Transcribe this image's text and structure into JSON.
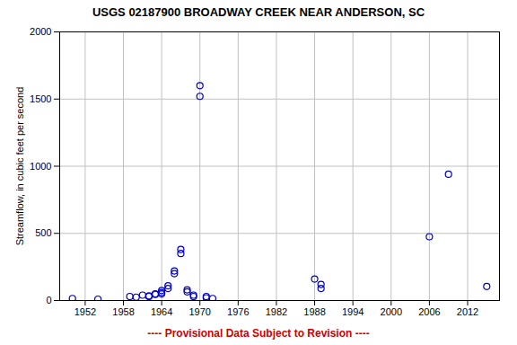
{
  "chart_data": {
    "type": "scatter",
    "title": "USGS 02187900 BROADWAY CREEK NEAR ANDERSON, SC",
    "ylabel": "Streamflow, in cubic feet per second",
    "footnote": {
      "text": "---- Provisional Data Subject to Revision ----",
      "color": "#cc0000"
    },
    "x": [
      1950,
      1954,
      1959,
      1960,
      1961,
      1962,
      1962,
      1963,
      1963,
      1964,
      1964,
      1964,
      1965,
      1965,
      1966,
      1966,
      1967,
      1967,
      1968,
      1968,
      1969,
      1969,
      1970,
      1970,
      1971,
      1971,
      1972,
      1988,
      1989,
      1989,
      2006,
      2009,
      2015
    ],
    "values": [
      15,
      10,
      30,
      25,
      40,
      35,
      30,
      50,
      45,
      75,
      60,
      50,
      110,
      90,
      220,
      200,
      380,
      350,
      80,
      65,
      40,
      30,
      1600,
      1520,
      30,
      20,
      15,
      160,
      120,
      90,
      475,
      940,
      105
    ],
    "color": "#0000cc",
    "marker": "open_circle",
    "xlim": [
      1948,
      2017
    ],
    "xticks": [
      1952,
      1958,
      1964,
      1970,
      1976,
      1982,
      1988,
      1994,
      2000,
      2006,
      2012
    ],
    "ylim": [
      0,
      2000
    ],
    "yticks": [
      0,
      500,
      1000,
      1500,
      2000
    ],
    "grid": true
  }
}
